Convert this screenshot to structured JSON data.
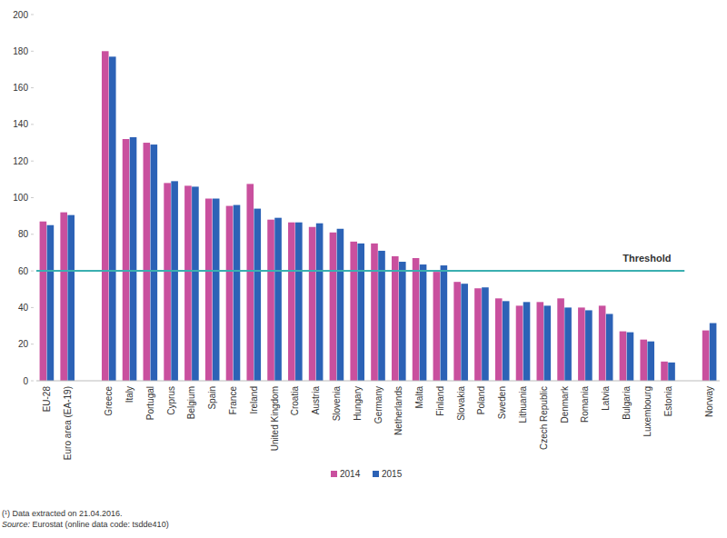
{
  "chart_data": {
    "type": "bar",
    "categories": [
      "EU-28",
      "Euro area (EA-19)",
      null,
      "Greece",
      "Italy",
      "Portugal",
      "Cyprus",
      "Belgium",
      "Spain",
      "France",
      "Ireland",
      "United Kingdom",
      "Croatia",
      "Austria",
      "Slovenia",
      "Hungary",
      "Germany",
      "Netherlands",
      "Malta",
      "Finland",
      "Slovakia",
      "Poland",
      "Sweden",
      "Lithuania",
      "Czech Republic",
      "Denmark",
      "Romania",
      "Latvia",
      "Bulgaria",
      "Luxembourg",
      "Estonia",
      null,
      "Norway"
    ],
    "series": [
      {
        "name": "2014",
        "color": "#c9509e",
        "values": [
          87,
          92,
          null,
          180,
          132,
          130,
          108,
          106.5,
          99.5,
          95.5,
          107.5,
          88,
          86.5,
          84,
          81,
          76,
          75,
          68,
          67,
          59.5,
          54,
          50.5,
          45,
          41,
          43,
          45,
          40,
          41,
          27,
          22.5,
          10.5,
          null,
          27.5
        ]
      },
      {
        "name": "2015",
        "color": "#2c62b6",
        "values": [
          85,
          90.5,
          null,
          177,
          133,
          129,
          109,
          106,
          99.5,
          96,
          94,
          89,
          86.5,
          86,
          83,
          75,
          71,
          65,
          63.5,
          63,
          53,
          51,
          43.5,
          43,
          41,
          40,
          38.5,
          36.5,
          26.5,
          21.5,
          10,
          null,
          31.5
        ]
      }
    ],
    "ylim": [
      0,
      200
    ],
    "yticks": [
      0,
      20,
      40,
      60,
      80,
      100,
      120,
      140,
      160,
      180,
      200
    ],
    "grid": false,
    "legend": "bottom",
    "annotations": [
      {
        "text": "Threshold",
        "y": 60
      }
    ],
    "notes": [
      "(¹) Data extracted on 21.04.2016."
    ],
    "source_label": "Source:",
    "source": "Eurostat (online data code: tsdde410)"
  }
}
